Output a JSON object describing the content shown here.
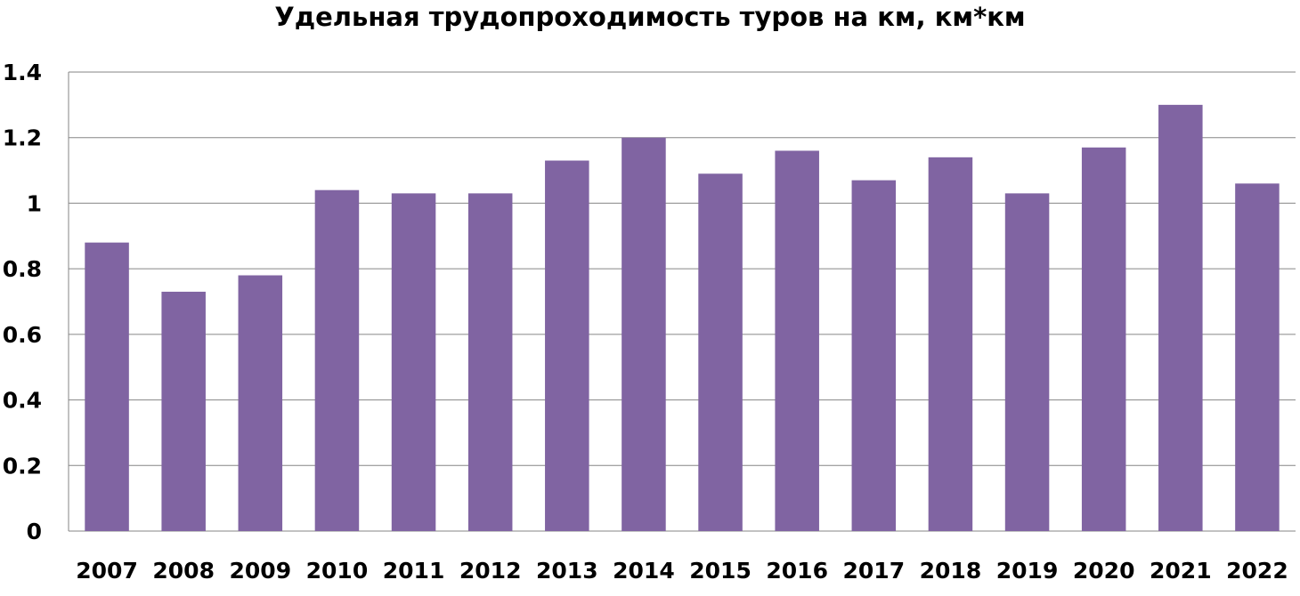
{
  "chart_data": {
    "type": "bar",
    "title": "Удельная трудопроходимость туров на км, км*км",
    "xlabel": "",
    "ylabel": "",
    "categories": [
      "2007",
      "2008",
      "2009",
      "2010",
      "2011",
      "2012",
      "2013",
      "2014",
      "2015",
      "2016",
      "2017",
      "2018",
      "2019",
      "2020",
      "2021",
      "2022"
    ],
    "values": [
      0.88,
      0.73,
      0.78,
      1.04,
      1.03,
      1.03,
      1.13,
      1.2,
      1.09,
      1.16,
      1.07,
      1.14,
      1.03,
      1.17,
      1.3,
      1.06
    ],
    "ylim": [
      0,
      1.4
    ],
    "yticks": [
      "0",
      "0.2",
      "0.4",
      "0.6",
      "0.8",
      "1",
      "1.2",
      "1.4"
    ],
    "grid": true,
    "legend": "none",
    "colors": {
      "bar": "#8064a2",
      "grid": "#868686",
      "axis": "#868686"
    }
  }
}
